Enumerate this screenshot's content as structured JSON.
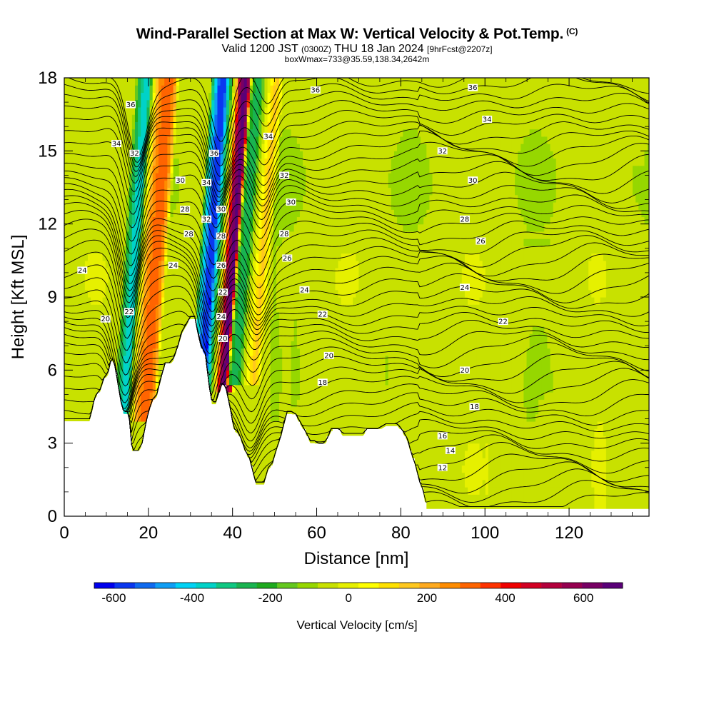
{
  "header": {
    "title": "Wind-Parallel Section at Max W: Vertical Velocity & Pot.Temp.",
    "title_mark": "(C)",
    "valid_prefix": "Valid 1200 JST",
    "valid_utc": "(0300Z)",
    "valid_date": "THU 18 Jan 2024",
    "fcst": "[9hrFcst@2207z]",
    "boxinfo": "boxWmax=733@35.59,138.34,2642m"
  },
  "chart_data": {
    "type": "heatmap",
    "xlabel": "Distance [nm]",
    "ylabel": "Height [Kft MSL]",
    "xlim": [
      0,
      139
    ],
    "ylim": [
      0,
      18
    ],
    "x_ticks": [
      "0",
      "20",
      "40",
      "60",
      "80",
      "100",
      "120"
    ],
    "y_ticks": [
      "0",
      "3",
      "6",
      "9",
      "12",
      "15",
      "18"
    ],
    "colorbar": {
      "label": "Vertical Velocity [cm/s]",
      "range": [
        -650,
        700
      ],
      "tick_labels": [
        "-600",
        "-400",
        "-200",
        "0",
        "200",
        "400",
        "600"
      ],
      "colors": [
        "#0000ee",
        "#0a37f0",
        "#0f6af0",
        "#0f9ef5",
        "#00d2f5",
        "#00d2c8",
        "#0fc882",
        "#19b450",
        "#1eaa1e",
        "#64c81e",
        "#96d700",
        "#c8e100",
        "#e6f000",
        "#ffff00",
        "#ffe100",
        "#ffc81e",
        "#ffaa1e",
        "#ff8c00",
        "#ff6400",
        "#ff3200",
        "#f00000",
        "#d20023",
        "#b4003c",
        "#960050",
        "#780064",
        "#5a0078"
      ]
    },
    "theta_labels": [
      {
        "text": "36",
        "x": 15.8,
        "y": 16.9
      },
      {
        "text": "34",
        "x": 12.4,
        "y": 15.3
      },
      {
        "text": "32",
        "x": 16.7,
        "y": 14.9
      },
      {
        "text": "30",
        "x": 27.6,
        "y": 13.8
      },
      {
        "text": "28",
        "x": 28.7,
        "y": 12.6
      },
      {
        "text": "28",
        "x": 29.6,
        "y": 11.6
      },
      {
        "text": "24",
        "x": 4.3,
        "y": 10.1
      },
      {
        "text": "24",
        "x": 25.9,
        "y": 10.3
      },
      {
        "text": "20",
        "x": 9.8,
        "y": 8.1
      },
      {
        "text": "22",
        "x": 15.4,
        "y": 8.4
      },
      {
        "text": "36",
        "x": 35.6,
        "y": 14.9
      },
      {
        "text": "34",
        "x": 33.8,
        "y": 13.7
      },
      {
        "text": "32",
        "x": 33.8,
        "y": 12.2
      },
      {
        "text": "30",
        "x": 37.3,
        "y": 12.6
      },
      {
        "text": "28",
        "x": 37.3,
        "y": 11.5
      },
      {
        "text": "26",
        "x": 37.3,
        "y": 10.3
      },
      {
        "text": "22",
        "x": 37.7,
        "y": 9.2
      },
      {
        "text": "24",
        "x": 37.3,
        "y": 8.2
      },
      {
        "text": "20",
        "x": 37.7,
        "y": 7.3
      },
      {
        "text": "36",
        "x": 59.7,
        "y": 17.5
      },
      {
        "text": "34",
        "x": 48.5,
        "y": 15.6
      },
      {
        "text": "32",
        "x": 52.3,
        "y": 14.0
      },
      {
        "text": "30",
        "x": 53.9,
        "y": 12.9
      },
      {
        "text": "28",
        "x": 52.3,
        "y": 11.6
      },
      {
        "text": "26",
        "x": 53.0,
        "y": 10.6
      },
      {
        "text": "24",
        "x": 57.1,
        "y": 9.3
      },
      {
        "text": "22",
        "x": 61.4,
        "y": 8.3
      },
      {
        "text": "20",
        "x": 62.9,
        "y": 6.6
      },
      {
        "text": "18",
        "x": 61.4,
        "y": 5.5
      },
      {
        "text": "36",
        "x": 97.1,
        "y": 17.6
      },
      {
        "text": "34",
        "x": 100.5,
        "y": 16.3
      },
      {
        "text": "32",
        "x": 89.9,
        "y": 15.0
      },
      {
        "text": "30",
        "x": 97.1,
        "y": 13.8
      },
      {
        "text": "28",
        "x": 95.2,
        "y": 12.2
      },
      {
        "text": "26",
        "x": 99.0,
        "y": 11.3
      },
      {
        "text": "24",
        "x": 95.2,
        "y": 9.4
      },
      {
        "text": "22",
        "x": 104.3,
        "y": 8.0
      },
      {
        "text": "20",
        "x": 95.2,
        "y": 6.0
      },
      {
        "text": "18",
        "x": 97.5,
        "y": 4.5
      },
      {
        "text": "16",
        "x": 89.9,
        "y": 3.3
      },
      {
        "text": "14",
        "x": 91.8,
        "y": 2.7
      },
      {
        "text": "12",
        "x": 89.9,
        "y": 2.0
      }
    ],
    "terrain_profile": [
      [
        0,
        3.9
      ],
      [
        6,
        3.9
      ],
      [
        6.8,
        4.4
      ],
      [
        7.2,
        4.8
      ],
      [
        8.5,
        5.1
      ],
      [
        9.5,
        5.6
      ],
      [
        10.4,
        5.8
      ],
      [
        11.2,
        6.4
      ],
      [
        11.8,
        6.3
      ],
      [
        12.5,
        5.6
      ],
      [
        13.5,
        4.6
      ],
      [
        14.1,
        4.2
      ],
      [
        15,
        4.2
      ],
      [
        15.6,
        3.8
      ],
      [
        16.1,
        2.6
      ],
      [
        17.5,
        2.6
      ],
      [
        18.5,
        2.9
      ],
      [
        19.5,
        3.8
      ],
      [
        20.2,
        4.3
      ],
      [
        21,
        4.7
      ],
      [
        22,
        4.9
      ],
      [
        23,
        5.6
      ],
      [
        24,
        6.2
      ],
      [
        25,
        6.2
      ],
      [
        26,
        6.4
      ],
      [
        27,
        6.9
      ],
      [
        28,
        7.5
      ],
      [
        29,
        7.8
      ],
      [
        30,
        8.1
      ],
      [
        31,
        8.1
      ],
      [
        31.8,
        7.4
      ],
      [
        32.5,
        6.9
      ],
      [
        33.5,
        6.6
      ],
      [
        34.5,
        5.2
      ],
      [
        35.1,
        4.6
      ],
      [
        36,
        4.6
      ],
      [
        36.8,
        5.0
      ],
      [
        37.6,
        5.4
      ],
      [
        38.4,
        5.2
      ],
      [
        39.5,
        4.3
      ],
      [
        40.3,
        3.5
      ],
      [
        41.2,
        3.4
      ],
      [
        42,
        3.1
      ],
      [
        43,
        2.6
      ],
      [
        44,
        2.3
      ],
      [
        45.5,
        1.3
      ],
      [
        47.5,
        1.3
      ],
      [
        48.5,
        1.9
      ],
      [
        49.5,
        2.1
      ],
      [
        50.5,
        2.7
      ],
      [
        51.5,
        3.2
      ],
      [
        52.2,
        3.7
      ],
      [
        53,
        4.2
      ],
      [
        54,
        4.2
      ],
      [
        55,
        4.1
      ],
      [
        56,
        3.8
      ],
      [
        57.3,
        3.4
      ],
      [
        58.5,
        3.0
      ],
      [
        59.5,
        3.0
      ],
      [
        60.3,
        2.9
      ],
      [
        61.7,
        2.9
      ],
      [
        62.5,
        3.1
      ],
      [
        63.5,
        3.5
      ],
      [
        65.3,
        3.5
      ],
      [
        66.2,
        3.3
      ],
      [
        67.5,
        3.3
      ],
      [
        69.5,
        3.3
      ],
      [
        71,
        3.3
      ],
      [
        72,
        3.5
      ],
      [
        74.5,
        3.5
      ],
      [
        76.5,
        3.7
      ],
      [
        79.2,
        3.7
      ],
      [
        80.5,
        3.4
      ],
      [
        81.5,
        3.1
      ],
      [
        82.5,
        2.5
      ],
      [
        83.5,
        2.0
      ],
      [
        84.5,
        1.3
      ],
      [
        85.3,
        1.0
      ],
      [
        86,
        0.3
      ],
      [
        139,
        0.3
      ]
    ],
    "bands": [
      {
        "x0": 11.0,
        "x1": 22.0,
        "xt": 5.5,
        "yb": 4.0,
        "u": [
          0,
          -220,
          -350,
          -380,
          0,
          220,
          300,
          330,
          250,
          80
        ]
      },
      {
        "x0": 29.5,
        "x1": 40.5,
        "xt": 5.0,
        "yb": 5.0,
        "u": [
          0,
          -350,
          -550,
          -600,
          -300,
          0,
          550,
          700,
          500,
          150
        ]
      },
      {
        "x0": 38.5,
        "x1": 47.0,
        "xt": 5.5,
        "yb": 5.5,
        "u": [
          0,
          -200,
          -280,
          -250,
          -100,
          0,
          100,
          150,
          60,
          0
        ]
      }
    ],
    "streaks": [
      {
        "xc": 50.0,
        "w": 1.2,
        "y0": 4.0,
        "y1": 13.0,
        "u": -80
      },
      {
        "xc": 55.0,
        "w": 1.0,
        "y0": 4.5,
        "y1": 11.0,
        "u": -70
      },
      {
        "xc": 58.5,
        "w": 0.8,
        "y0": 5.0,
        "y1": 10.5,
        "u": -60
      },
      {
        "xc": 64.0,
        "w": 1.0,
        "y0": 4.0,
        "y1": 9.0,
        "u": -60
      },
      {
        "xc": 72.0,
        "w": 1.0,
        "y0": 3.6,
        "y1": 7.5,
        "u": -60
      },
      {
        "xc": 76.5,
        "w": 1.5,
        "y0": 3.8,
        "y1": 9.0,
        "u": -70
      },
      {
        "xc": 90.0,
        "w": 3.0,
        "y0": 0.5,
        "y1": 9.0,
        "u": -60
      },
      {
        "xc": 113.0,
        "w": 4.0,
        "y0": 0.5,
        "y1": 11.5,
        "u": -65
      },
      {
        "xc": 134.0,
        "w": 4.0,
        "y0": 0.5,
        "y1": 14.5,
        "u": -60
      }
    ]
  }
}
